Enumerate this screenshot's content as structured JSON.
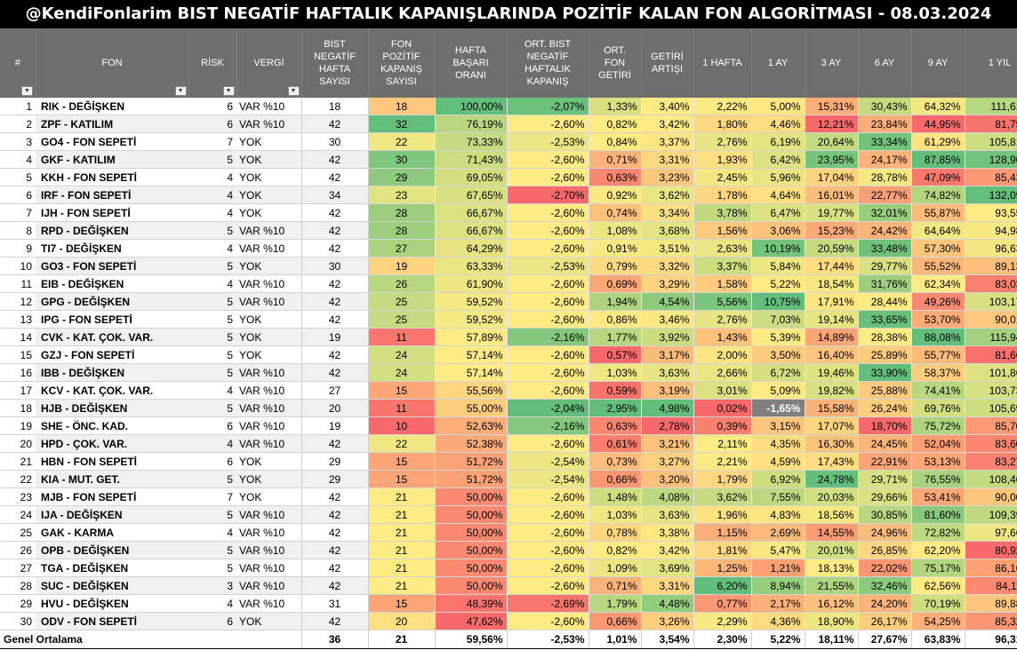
{
  "title": "@KendiFonlarim BIST NEGATİF HAFTALIK KAPANIŞLARINDA POZİTİF KALAN FON ALGORİTMASI - 08.03.2024",
  "headers": {
    "idx": "#",
    "fon": "FON",
    "risk": "RİSK",
    "vergi": "VERGİ",
    "bist_neg": "BIST NEGATİF HAFTA SAYISI",
    "fon_poz": "FON POZİTİF KAPANIŞ SAYISI",
    "basari": "HAFTA BAŞARI ORANI",
    "ort_bist": "ORT. BIST NEGATİF HAFTALIK KAPANIŞ",
    "ort_fon": "ORT. FON GETİRİ",
    "getiri_artisi": "GETİRİ ARTIŞI",
    "h1": "1 HAFTA",
    "a1": "1 AY",
    "a3": "3 AY",
    "a6": "6 AY",
    "a9": "9 AY",
    "y1": "1 YIL"
  },
  "filter_icon": "dropdown-filter-icon",
  "rows": [
    {
      "idx": "1",
      "fon": "RIK - DEĞİŞKEN",
      "risk": "6",
      "vergi": "VAR %10",
      "bist_neg": "18",
      "fon_poz": "18",
      "basari": "100,00%",
      "ort_bist": "-2,07%",
      "ort_fon": "1,33%",
      "getiri_artisi": "3,40%",
      "h1": "2,22%",
      "a1": "5,00%",
      "a3": "15,31%",
      "a6": "30,43%",
      "a9": "64,32%",
      "y1": "111,61%"
    },
    {
      "idx": "2",
      "fon": "ZPF - KATILIM",
      "risk": "6",
      "vergi": "VAR %10",
      "bist_neg": "42",
      "fon_poz": "32",
      "basari": "76,19%",
      "ort_bist": "-2,60%",
      "ort_fon": "0,82%",
      "getiri_artisi": "3,42%",
      "h1": "1,80%",
      "a1": "4,46%",
      "a3": "12,21%",
      "a6": "23,84%",
      "a9": "44,95%",
      "y1": "81,75%"
    },
    {
      "idx": "3",
      "fon": "GO4 - FON SEPETİ",
      "risk": "7",
      "vergi": "YOK",
      "bist_neg": "30",
      "fon_poz": "22",
      "basari": "73,33%",
      "ort_bist": "-2,53%",
      "ort_fon": "0,84%",
      "getiri_artisi": "3,37%",
      "h1": "2,76%",
      "a1": "6,19%",
      "a3": "20,64%",
      "a6": "33,34%",
      "a9": "61,29%",
      "y1": "105,81%"
    },
    {
      "idx": "4",
      "fon": "GKF - KATILIM",
      "risk": "5",
      "vergi": "YOK",
      "bist_neg": "42",
      "fon_poz": "30",
      "basari": "71,43%",
      "ort_bist": "-2,60%",
      "ort_fon": "0,71%",
      "getiri_artisi": "3,31%",
      "h1": "1,93%",
      "a1": "6,42%",
      "a3": "23,95%",
      "a6": "24,17%",
      "a9": "87,85%",
      "y1": "128,90%"
    },
    {
      "idx": "5",
      "fon": "KKH - FON SEPETİ",
      "risk": "4",
      "vergi": "YOK",
      "bist_neg": "42",
      "fon_poz": "29",
      "basari": "69,05%",
      "ort_bist": "-2,60%",
      "ort_fon": "0,63%",
      "getiri_artisi": "3,23%",
      "h1": "2,45%",
      "a1": "5,96%",
      "a3": "17,04%",
      "a6": "28,78%",
      "a9": "47,09%",
      "y1": "85,43%"
    },
    {
      "idx": "6",
      "fon": "IRF - FON SEPETİ",
      "risk": "4",
      "vergi": "YOK",
      "bist_neg": "34",
      "fon_poz": "23",
      "basari": "67,65%",
      "ort_bist": "-2,70%",
      "ort_fon": "0,92%",
      "getiri_artisi": "3,62%",
      "h1": "1,78%",
      "a1": "4,64%",
      "a3": "16,01%",
      "a6": "22,77%",
      "a9": "74,82%",
      "y1": "132,09%"
    },
    {
      "idx": "7",
      "fon": "IJH - FON SEPETİ",
      "risk": "4",
      "vergi": "YOK",
      "bist_neg": "42",
      "fon_poz": "28",
      "basari": "66,67%",
      "ort_bist": "-2,60%",
      "ort_fon": "0,74%",
      "getiri_artisi": "3,34%",
      "h1": "3,78%",
      "a1": "6,47%",
      "a3": "19,77%",
      "a6": "32,01%",
      "a9": "55,87%",
      "y1": "93,55%"
    },
    {
      "idx": "8",
      "fon": "RPD - DEĞİŞKEN",
      "risk": "5",
      "vergi": "VAR %10",
      "bist_neg": "42",
      "fon_poz": "28",
      "basari": "66,67%",
      "ort_bist": "-2,60%",
      "ort_fon": "1,08%",
      "getiri_artisi": "3,68%",
      "h1": "1,56%",
      "a1": "3,06%",
      "a3": "15,23%",
      "a6": "24,42%",
      "a9": "64,64%",
      "y1": "94,98%"
    },
    {
      "idx": "9",
      "fon": "TI7 - DEĞİŞKEN",
      "risk": "4",
      "vergi": "VAR %10",
      "bist_neg": "42",
      "fon_poz": "27",
      "basari": "64,29%",
      "ort_bist": "-2,60%",
      "ort_fon": "0,91%",
      "getiri_artisi": "3,51%",
      "h1": "2,63%",
      "a1": "10,19%",
      "a3": "20,59%",
      "a6": "33,48%",
      "a9": "57,30%",
      "y1": "96,63%"
    },
    {
      "idx": "10",
      "fon": "GO3 - FON SEPETİ",
      "risk": "5",
      "vergi": "YOK",
      "bist_neg": "30",
      "fon_poz": "19",
      "basari": "63,33%",
      "ort_bist": "-2,53%",
      "ort_fon": "0,79%",
      "getiri_artisi": "3,32%",
      "h1": "3,37%",
      "a1": "5,84%",
      "a3": "17,44%",
      "a6": "29,77%",
      "a9": "55,52%",
      "y1": "89,13%"
    },
    {
      "idx": "11",
      "fon": "EIB - DEĞİŞKEN",
      "risk": "4",
      "vergi": "VAR %10",
      "bist_neg": "42",
      "fon_poz": "26",
      "basari": "61,90%",
      "ort_bist": "-2,60%",
      "ort_fon": "0,69%",
      "getiri_artisi": "3,29%",
      "h1": "1,58%",
      "a1": "5,22%",
      "a3": "18,54%",
      "a6": "31,76%",
      "a9": "62,34%",
      "y1": "83,03%"
    },
    {
      "idx": "12",
      "fon": "GPG - DEĞİŞKEN",
      "risk": "5",
      "vergi": "VAR %10",
      "bist_neg": "42",
      "fon_poz": "25",
      "basari": "59,52%",
      "ort_bist": "-2,60%",
      "ort_fon": "1,94%",
      "getiri_artisi": "4,54%",
      "h1": "5,56%",
      "a1": "10,75%",
      "a3": "17,91%",
      "a6": "28,44%",
      "a9": "49,26%",
      "y1": "103,17%"
    },
    {
      "idx": "13",
      "fon": "IPG - FON SEPETİ",
      "risk": "5",
      "vergi": "YOK",
      "bist_neg": "42",
      "fon_poz": "25",
      "basari": "59,52%",
      "ort_bist": "-2,60%",
      "ort_fon": "0,86%",
      "getiri_artisi": "3,46%",
      "h1": "2,76%",
      "a1": "7,03%",
      "a3": "19,14%",
      "a6": "33,65%",
      "a9": "53,70%",
      "y1": "90,01%"
    },
    {
      "idx": "14",
      "fon": "CVK - KAT. ÇOK. VAR.",
      "risk": "5",
      "vergi": "YOK",
      "bist_neg": "19",
      "fon_poz": "11",
      "basari": "57,89%",
      "ort_bist": "-2,16%",
      "ort_fon": "1,77%",
      "getiri_artisi": "3,92%",
      "h1": "1,43%",
      "a1": "5,39%",
      "a3": "14,89%",
      "a6": "28,38%",
      "a9": "88,08%",
      "y1": "115,94%"
    },
    {
      "idx": "15",
      "fon": "GZJ - FON SEPETİ",
      "risk": "5",
      "vergi": "YOK",
      "bist_neg": "42",
      "fon_poz": "24",
      "basari": "57,14%",
      "ort_bist": "-2,60%",
      "ort_fon": "0,57%",
      "getiri_artisi": "3,17%",
      "h1": "2,00%",
      "a1": "3,50%",
      "a3": "16,40%",
      "a6": "25,89%",
      "a9": "55,77%",
      "y1": "81,66%"
    },
    {
      "idx": "16",
      "fon": "IBB - DEĞİŞKEN",
      "risk": "5",
      "vergi": "VAR %10",
      "bist_neg": "42",
      "fon_poz": "24",
      "basari": "57,14%",
      "ort_bist": "-2,60%",
      "ort_fon": "1,03%",
      "getiri_artisi": "3,63%",
      "h1": "2,66%",
      "a1": "6,72%",
      "a3": "19,46%",
      "a6": "33,90%",
      "a9": "58,37%",
      "y1": "101,86%"
    },
    {
      "idx": "17",
      "fon": "KCV - KAT. ÇOK. VAR.",
      "risk": "4",
      "vergi": "VAR %10",
      "bist_neg": "27",
      "fon_poz": "15",
      "basari": "55,56%",
      "ort_bist": "-2,60%",
      "ort_fon": "0,59%",
      "getiri_artisi": "3,19%",
      "h1": "3,01%",
      "a1": "5,09%",
      "a3": "19,82%",
      "a6": "25,88%",
      "a9": "74,41%",
      "y1": "103,73%"
    },
    {
      "idx": "18",
      "fon": "HJB - DEĞİŞKEN",
      "risk": "5",
      "vergi": "VAR %10",
      "bist_neg": "20",
      "fon_poz": "11",
      "basari": "55,00%",
      "ort_bist": "-2,04%",
      "ort_fon": "2,95%",
      "getiri_artisi": "4,98%",
      "h1": "0,02%",
      "a1": "-1,65%",
      "a3": "15,58%",
      "a6": "26,24%",
      "a9": "69,76%",
      "y1": "105,69%"
    },
    {
      "idx": "19",
      "fon": "SHE - ÖNC. KAD.",
      "risk": "6",
      "vergi": "VAR %10",
      "bist_neg": "19",
      "fon_poz": "10",
      "basari": "52,63%",
      "ort_bist": "-2,16%",
      "ort_fon": "0,63%",
      "getiri_artisi": "2,78%",
      "h1": "0,39%",
      "a1": "3,15%",
      "a3": "17,07%",
      "a6": "18,70%",
      "a9": "75,72%",
      "y1": "85,70%"
    },
    {
      "idx": "20",
      "fon": "HPD - ÇOK. VAR.",
      "risk": "4",
      "vergi": "VAR %10",
      "bist_neg": "42",
      "fon_poz": "22",
      "basari": "52,38%",
      "ort_bist": "-2,60%",
      "ort_fon": "0,61%",
      "getiri_artisi": "3,21%",
      "h1": "2,11%",
      "a1": "4,35%",
      "a3": "16,30%",
      "a6": "24,45%",
      "a9": "52,04%",
      "y1": "83,60%"
    },
    {
      "idx": "21",
      "fon": "HBN - FON SEPETİ",
      "risk": "6",
      "vergi": "YOK",
      "bist_neg": "29",
      "fon_poz": "15",
      "basari": "51,72%",
      "ort_bist": "-2,54%",
      "ort_fon": "0,73%",
      "getiri_artisi": "3,27%",
      "h1": "2,21%",
      "a1": "4,59%",
      "a3": "17,43%",
      "a6": "22,91%",
      "a9": "53,13%",
      "y1": "83,27%"
    },
    {
      "idx": "22",
      "fon": "KIA - MUT. GET.",
      "risk": "5",
      "vergi": "YOK",
      "bist_neg": "29",
      "fon_poz": "15",
      "basari": "51,72%",
      "ort_bist": "-2,54%",
      "ort_fon": "0,66%",
      "getiri_artisi": "3,20%",
      "h1": "1,79%",
      "a1": "6,92%",
      "a3": "24,78%",
      "a6": "29,71%",
      "a9": "76,55%",
      "y1": "108,46%"
    },
    {
      "idx": "23",
      "fon": "MJB - FON SEPETİ",
      "risk": "7",
      "vergi": "YOK",
      "bist_neg": "42",
      "fon_poz": "21",
      "basari": "50,00%",
      "ort_bist": "-2,60%",
      "ort_fon": "1,48%",
      "getiri_artisi": "4,08%",
      "h1": "3,62%",
      "a1": "7,55%",
      "a3": "20,03%",
      "a6": "29,66%",
      "a9": "53,41%",
      "y1": "90,00%"
    },
    {
      "idx": "24",
      "fon": "IJA - DEĞİŞKEN",
      "risk": "5",
      "vergi": "VAR %10",
      "bist_neg": "42",
      "fon_poz": "21",
      "basari": "50,00%",
      "ort_bist": "-2,60%",
      "ort_fon": "1,03%",
      "getiri_artisi": "3,63%",
      "h1": "1,96%",
      "a1": "4,83%",
      "a3": "18,56%",
      "a6": "30,85%",
      "a9": "81,60%",
      "y1": "109,39%"
    },
    {
      "idx": "25",
      "fon": "GAK - KARMA",
      "risk": "4",
      "vergi": "VAR %10",
      "bist_neg": "42",
      "fon_poz": "21",
      "basari": "50,00%",
      "ort_bist": "-2,60%",
      "ort_fon": "0,78%",
      "getiri_artisi": "3,38%",
      "h1": "1,15%",
      "a1": "2,69%",
      "a3": "14,55%",
      "a6": "24,96%",
      "a9": "72,82%",
      "y1": "97,66%"
    },
    {
      "idx": "26",
      "fon": "OPB - DEĞİŞKEN",
      "risk": "5",
      "vergi": "VAR %10",
      "bist_neg": "42",
      "fon_poz": "21",
      "basari": "50,00%",
      "ort_bist": "-2,60%",
      "ort_fon": "0,82%",
      "getiri_artisi": "3,42%",
      "h1": "1,81%",
      "a1": "5,47%",
      "a3": "20,01%",
      "a6": "26,85%",
      "a9": "62,20%",
      "y1": "80,92%"
    },
    {
      "idx": "27",
      "fon": "TGA - DEĞİŞKEN",
      "risk": "5",
      "vergi": "VAR %10",
      "bist_neg": "42",
      "fon_poz": "21",
      "basari": "50,00%",
      "ort_bist": "-2,60%",
      "ort_fon": "1,09%",
      "getiri_artisi": "3,69%",
      "h1": "1,25%",
      "a1": "1,21%",
      "a3": "18,13%",
      "a6": "22,02%",
      "a9": "75,17%",
      "y1": "86,16%"
    },
    {
      "idx": "28",
      "fon": "SUC - DEĞİŞKEN",
      "risk": "3",
      "vergi": "VAR %10",
      "bist_neg": "42",
      "fon_poz": "21",
      "basari": "50,00%",
      "ort_bist": "-2,60%",
      "ort_fon": "0,71%",
      "getiri_artisi": "3,31%",
      "h1": "6,20%",
      "a1": "8,94%",
      "a3": "21,55%",
      "a6": "32,46%",
      "a9": "62,56%",
      "y1": "84,11%"
    },
    {
      "idx": "29",
      "fon": "HVU - DEĞİŞKEN",
      "risk": "4",
      "vergi": "VAR %10",
      "bist_neg": "31",
      "fon_poz": "15",
      "basari": "48,39%",
      "ort_bist": "-2,69%",
      "ort_fon": "1,79%",
      "getiri_artisi": "4,48%",
      "h1": "0,77%",
      "a1": "2,17%",
      "a3": "16,12%",
      "a6": "24,20%",
      "a9": "70,19%",
      "y1": "89,88%"
    },
    {
      "idx": "30",
      "fon": "ODV - FON SEPETİ",
      "risk": "6",
      "vergi": "YOK",
      "bist_neg": "42",
      "fon_poz": "20",
      "basari": "47,62%",
      "ort_bist": "-2,60%",
      "ort_fon": "0,66%",
      "getiri_artisi": "3,26%",
      "h1": "2,29%",
      "a1": "4,36%",
      "a3": "18,90%",
      "a6": "26,17%",
      "a9": "54,25%",
      "y1": "85,32%"
    }
  ],
  "footer": {
    "label": "Genel Ortalama",
    "bist_neg": "36",
    "fon_poz": "21",
    "basari": "59,56%",
    "ort_bist": "-2,53%",
    "ort_fon": "1,01%",
    "getiri_artisi": "3,54%",
    "h1": "2,30%",
    "a1": "5,22%",
    "a3": "18,11%",
    "a6": "27,67%",
    "a9": "63,83%",
    "y1": "96,31%"
  },
  "colors": {
    "header_bg": "#6e6e6e",
    "scale_high": "#63be7b",
    "scale_mid": "#ffeb84",
    "scale_low": "#f8696b",
    "negative_text": "#ffffff"
  }
}
